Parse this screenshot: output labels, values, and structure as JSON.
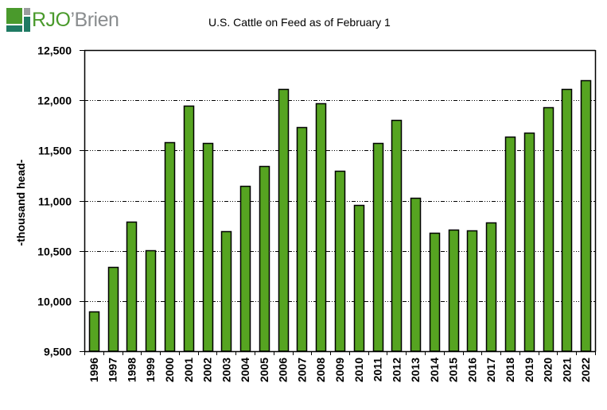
{
  "logo": {
    "part1": "RJO",
    "part2": "’Brien",
    "colors": {
      "green": "#4a9a2c",
      "teal": "#1f7a63",
      "gray": "#8a8d8f"
    }
  },
  "chart_data": {
    "type": "bar",
    "title": "U.S. Cattle on Feed as of February 1",
    "xlabel": "",
    "ylabel": "-thousand head-",
    "ylim": [
      9500,
      12500
    ],
    "yticks": [
      9500,
      10000,
      10500,
      11000,
      11500,
      12000,
      12500
    ],
    "ytick_labels": [
      "9,500",
      "10,000",
      "10,500",
      "11,000",
      "11,500",
      "12,000",
      "12,500"
    ],
    "grid": "horizontal dashed",
    "bar_color": "#56a421",
    "categories": [
      "1996",
      "1997",
      "1998",
      "1999",
      "2000",
      "2001",
      "2002",
      "2003",
      "2004",
      "2005",
      "2006",
      "2007",
      "2008",
      "2009",
      "2010",
      "2011",
      "2012",
      "2013",
      "2014",
      "2015",
      "2016",
      "2017",
      "2018",
      "2019",
      "2020",
      "2021",
      "2022"
    ],
    "values": [
      9897,
      10341,
      10794,
      10508,
      11579,
      11944,
      11571,
      10698,
      11143,
      11341,
      12111,
      11730,
      11968,
      11294,
      10960,
      11571,
      11802,
      11024,
      10683,
      10714,
      10706,
      10786,
      11635,
      11675,
      11929,
      12111,
      12198
    ]
  }
}
